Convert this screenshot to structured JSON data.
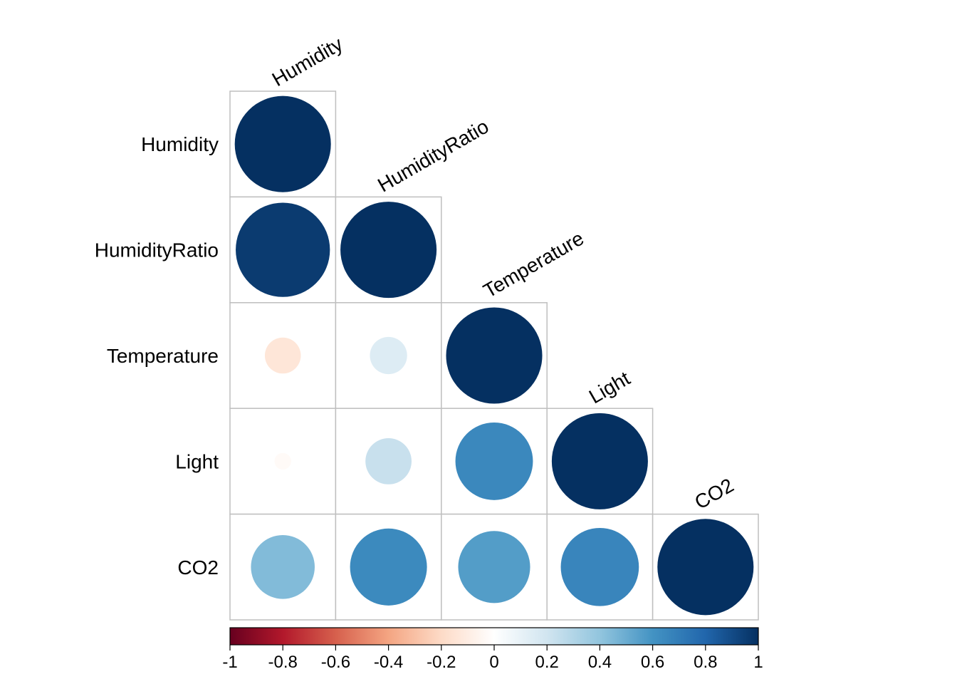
{
  "chart_data": {
    "type": "heatmap",
    "subtype": "correlation-circle-lower-triangle",
    "variables": [
      "Humidity",
      "HumidityRatio",
      "Temperature",
      "Light",
      "CO2"
    ],
    "matrix": [
      [
        1.0,
        0.96,
        -0.14,
        -0.03,
        0.44
      ],
      [
        0.96,
        1.0,
        0.15,
        0.23,
        0.64
      ],
      [
        -0.14,
        0.15,
        1.0,
        0.65,
        0.56
      ],
      [
        -0.03,
        0.23,
        0.65,
        1.0,
        0.66
      ],
      [
        0.44,
        0.64,
        0.56,
        0.66,
        1.0
      ]
    ],
    "colorbar": {
      "range": [
        -1,
        1
      ],
      "ticks": [
        "-1",
        "-0.8",
        "-0.6",
        "-0.4",
        "-0.2",
        "0",
        "0.2",
        "0.4",
        "0.6",
        "0.8",
        "1"
      ],
      "colors": [
        "#67001F",
        "#B2182B",
        "#D6604D",
        "#F4A582",
        "#FDDBC7",
        "#FFFFFF",
        "#D1E5F0",
        "#92C5DE",
        "#4393C3",
        "#2166AC",
        "#053061"
      ]
    },
    "grid_color": "#BFBFBF"
  }
}
